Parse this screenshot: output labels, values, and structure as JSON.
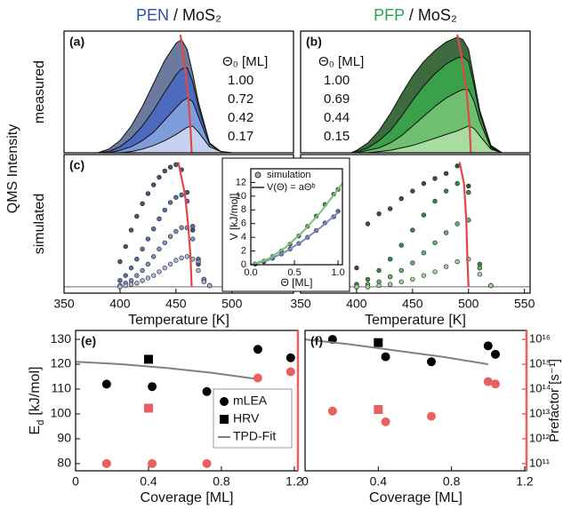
{
  "figure": {
    "ylabel": "QMS Intensity"
  },
  "chart_data": [
    {
      "type": "area",
      "title_material": "PEN",
      "title_substrate": " / MoS₂",
      "title_color": "#3050b0",
      "panel_label": "(a)",
      "ylabel": "measured",
      "legend_title": "Θ₀ [ML]",
      "xlim": [
        350,
        555
      ],
      "ylim": [
        0,
        1.0
      ],
      "x": [
        380,
        390,
        400,
        410,
        420,
        430,
        440,
        450,
        455,
        460,
        465,
        470,
        480,
        490,
        500
      ],
      "series": [
        {
          "name": "1.00",
          "color": "#6b7a9e",
          "values": [
            0,
            0.03,
            0.1,
            0.22,
            0.38,
            0.57,
            0.76,
            0.9,
            0.93,
            0.85,
            0.65,
            0.42,
            0.08,
            0.01,
            0
          ]
        },
        {
          "name": "0.72",
          "color": "#4c6bbf",
          "values": [
            0,
            0.01,
            0.05,
            0.12,
            0.22,
            0.35,
            0.5,
            0.64,
            0.69,
            0.7,
            0.58,
            0.38,
            0.08,
            0.01,
            0
          ]
        },
        {
          "name": "0.42",
          "color": "#7f9cdb",
          "values": [
            0,
            0,
            0.02,
            0.05,
            0.1,
            0.17,
            0.27,
            0.37,
            0.42,
            0.45,
            0.42,
            0.3,
            0.07,
            0.01,
            0
          ]
        },
        {
          "name": "0.17",
          "color": "#c5d1ef",
          "values": [
            0,
            0,
            0,
            0.01,
            0.03,
            0.06,
            0.1,
            0.15,
            0.18,
            0.21,
            0.22,
            0.17,
            0.05,
            0.01,
            0
          ]
        }
      ],
      "peak_trace": {
        "color": "#e04848",
        "x": [
          454,
          458,
          461,
          463,
          464
        ],
        "values": [
          0.97,
          0.7,
          0.45,
          0.2,
          0
        ]
      }
    },
    {
      "type": "area",
      "title_material": "PFP",
      "title_substrate": " / MoS₂",
      "title_color": "#30a050",
      "panel_label": "(b)",
      "legend_title": "Θ₀ [ML]",
      "xlim": [
        350,
        555
      ],
      "ylim": [
        0,
        1.0
      ],
      "x": [
        395,
        400,
        410,
        420,
        430,
        440,
        450,
        460,
        470,
        480,
        490,
        495,
        500,
        505,
        510,
        520,
        530
      ],
      "series": [
        {
          "name": "1.00",
          "color": "#3d6b3d",
          "values": [
            0,
            0.02,
            0.08,
            0.18,
            0.32,
            0.48,
            0.63,
            0.75,
            0.84,
            0.91,
            0.95,
            0.93,
            0.85,
            0.6,
            0.35,
            0.06,
            0
          ]
        },
        {
          "name": "0.69",
          "color": "#3aa04a",
          "values": [
            0,
            0.01,
            0.04,
            0.1,
            0.18,
            0.3,
            0.43,
            0.55,
            0.65,
            0.73,
            0.78,
            0.79,
            0.75,
            0.55,
            0.32,
            0.05,
            0
          ]
        },
        {
          "name": "0.44",
          "color": "#6ec070",
          "values": [
            0,
            0,
            0.02,
            0.04,
            0.08,
            0.14,
            0.22,
            0.3,
            0.38,
            0.45,
            0.5,
            0.52,
            0.52,
            0.42,
            0.26,
            0.04,
            0
          ]
        },
        {
          "name": "0.15",
          "color": "#a8dca0",
          "values": [
            0,
            0,
            0,
            0.01,
            0.02,
            0.04,
            0.06,
            0.09,
            0.12,
            0.15,
            0.18,
            0.2,
            0.22,
            0.2,
            0.14,
            0.03,
            0
          ]
        }
      ],
      "peak_trace": {
        "color": "#e04848",
        "x": [
          490,
          494,
          498,
          501,
          502
        ],
        "values": [
          0.97,
          0.78,
          0.52,
          0.22,
          0
        ]
      }
    },
    {
      "type": "scatter",
      "panel_label": "(c)",
      "ylabel": "simulated",
      "xlabel": "Temperature [K]",
      "xlim": [
        350,
        555
      ],
      "ylim": [
        -0.05,
        1.05
      ],
      "xticks": [
        350,
        400,
        450,
        500
      ],
      "x": [
        400,
        405,
        410,
        415,
        420,
        425,
        430,
        435,
        440,
        445,
        450,
        455,
        460,
        465,
        470,
        475,
        480
      ],
      "series": [
        {
          "color": "#4a5575",
          "marker": "circle",
          "values": [
            0.2,
            0.32,
            0.45,
            0.56,
            0.66,
            0.74,
            0.81,
            0.87,
            0.92,
            0.95,
            0.97,
            0.93,
            0.75,
            0.45,
            0.18,
            0.05,
            0.01
          ]
        },
        {
          "color": "#5a6ea8",
          "marker": "circle",
          "values": [
            0.05,
            0.09,
            0.15,
            0.22,
            0.3,
            0.38,
            0.46,
            0.54,
            0.61,
            0.67,
            0.71,
            0.73,
            0.68,
            0.48,
            0.22,
            0.06,
            0.01
          ]
        },
        {
          "color": "#7f93c8",
          "marker": "circle",
          "values": [
            0.01,
            0.03,
            0.05,
            0.09,
            0.13,
            0.18,
            0.24,
            0.3,
            0.35,
            0.4,
            0.44,
            0.47,
            0.47,
            0.38,
            0.2,
            0.06,
            0.01
          ]
        },
        {
          "color": "#a8b8e0",
          "marker": "circle",
          "values": [
            0,
            0.01,
            0.02,
            0.03,
            0.05,
            0.07,
            0.09,
            0.12,
            0.15,
            0.18,
            0.21,
            0.23,
            0.24,
            0.22,
            0.13,
            0.04,
            0.01
          ]
        }
      ],
      "peak_trace": {
        "color": "#e04848",
        "x": [
          452,
          458,
          461,
          463,
          464
        ],
        "values": [
          0.99,
          0.74,
          0.48,
          0.24,
          0
        ]
      }
    },
    {
      "type": "scatter",
      "panel_label": "(d)",
      "xlabel": "Temperature [K]",
      "xlim": [
        350,
        555
      ],
      "ylim": [
        -0.05,
        1.05
      ],
      "xticks": [
        350,
        400,
        450,
        500,
        550
      ],
      "x": [
        400,
        410,
        420,
        430,
        440,
        450,
        460,
        470,
        480,
        490,
        500,
        510,
        520
      ],
      "series": [
        {
          "color": "#2f5a2f",
          "marker": "circle",
          "values": [
            0.15,
            0.5,
            0.58,
            0.62,
            0.7,
            0.76,
            0.82,
            0.86,
            0.9,
            0.96,
            0.8,
            0.15,
            0.01
          ]
        },
        {
          "color": "#3c8a46",
          "marker": "circle",
          "values": [
            0.02,
            0.06,
            0.13,
            0.22,
            0.33,
            0.45,
            0.57,
            0.68,
            0.76,
            0.82,
            0.75,
            0.18,
            0.01
          ]
        },
        {
          "color": "#63b46a",
          "marker": "circle",
          "values": [
            0,
            0.02,
            0.04,
            0.08,
            0.13,
            0.19,
            0.27,
            0.35,
            0.43,
            0.5,
            0.53,
            0.15,
            0.01
          ]
        },
        {
          "color": "#9ed69a",
          "marker": "circle",
          "values": [
            0,
            0,
            0.01,
            0.02,
            0.04,
            0.06,
            0.09,
            0.12,
            0.16,
            0.2,
            0.22,
            0.1,
            0.01
          ]
        }
      ],
      "peak_trace": {
        "color": "#e04848",
        "x": [
          492,
          496,
          498,
          499,
          500
        ],
        "values": [
          0.99,
          0.82,
          0.53,
          0.22,
          0
        ]
      }
    },
    {
      "type": "scatter",
      "ylabel": "V [kJ/mol]",
      "xlabel": "Θ [ML]",
      "xlim": [
        0,
        1.05
      ],
      "ylim": [
        0,
        14
      ],
      "xticks": [
        {
          "value": 0,
          "label": "0.0"
        },
        {
          "value": 0.5,
          "label": "0.5"
        },
        {
          "value": 1,
          "label": "1.0"
        }
      ],
      "yticks": [
        0,
        2,
        4,
        6,
        8,
        10,
        12
      ],
      "series": [
        {
          "name": "simulation",
          "color": "#6a7390",
          "marker": "circle",
          "x": [
            0.05,
            0.15,
            0.25,
            0.35,
            0.45,
            0.55,
            0.65,
            0.75,
            0.85,
            0.95,
            1.0
          ],
          "values": [
            0.1,
            0.44,
            0.94,
            1.56,
            2.3,
            3.1,
            4.0,
            5.0,
            6.1,
            7.0,
            7.8
          ]
        },
        {
          "color": "#4a8a4a",
          "marker": "circle",
          "x": [
            0.05,
            0.15,
            0.25,
            0.35,
            0.45,
            0.55,
            0.65,
            0.75,
            0.85,
            0.95,
            1.0
          ],
          "values": [
            0.1,
            0.53,
            1.2,
            2.0,
            3.0,
            4.2,
            5.6,
            7.1,
            8.8,
            10.3,
            11.0
          ]
        },
        {
          "name": "V(Θ) = aΘᵇ",
          "color": "#7a8ac8",
          "line": true,
          "x": [
            0,
            0.2,
            0.4,
            0.6,
            0.8,
            1.0
          ],
          "values": [
            0,
            0.68,
            1.92,
            3.53,
            5.44,
            7.6
          ]
        },
        {
          "color": "#7ac07a",
          "line": true,
          "x": [
            0,
            0.2,
            0.4,
            0.6,
            0.8,
            1.0,
            1.05
          ],
          "values": [
            0,
            0.84,
            2.54,
            4.87,
            7.69,
            11.0,
            11.9
          ]
        }
      ]
    },
    {
      "type": "scatter",
      "panel_label": "(e)",
      "ylabel": {
        "symbol": "E",
        "subscript": "d",
        "unit": "[kJ/mol]"
      },
      "xlabel": "Coverage [ML]",
      "xlim": [
        0,
        1.22
      ],
      "ylim": [
        77.1,
        133.6
      ],
      "xticks": [
        0,
        0.4,
        0.8,
        1.2
      ],
      "yticks": [
        80,
        90,
        100,
        110,
        120,
        130
      ],
      "y2lim": [
        51000000000.0,
        2.3e+16
      ],
      "y2log": true,
      "y2color": "#e86060",
      "legend": "lower right",
      "series": [
        {
          "name": "mLEA",
          "color": "#000000",
          "marker": "circle",
          "x": [
            0.17,
            0.42,
            0.72,
            1.0,
            1.18
          ],
          "values": [
            112,
            111,
            109,
            126,
            122.6
          ]
        },
        {
          "name": "HRV",
          "color": "#000000",
          "marker": "square",
          "x": [
            0.4
          ],
          "values": [
            122
          ]
        },
        {
          "name": "TPD-Fit",
          "color": "#808080",
          "line": true,
          "x": [
            0,
            0.25,
            0.5,
            0.75,
            1.0
          ],
          "values": [
            121,
            120,
            118.5,
            116.5,
            114
          ]
        },
        {
          "color": "#e86060",
          "marker": "circle",
          "axis": "y2",
          "x": [
            0.17,
            0.42,
            0.72,
            1.0,
            1.18
          ],
          "values": [
            100000000000.0,
            100000000000.0,
            100000000000.0,
            280000000000000.0,
            500000000000000.0
          ]
        },
        {
          "color": "#e86060",
          "marker": "square",
          "axis": "y2",
          "x": [
            0.4
          ],
          "values": [
            17000000000000.0
          ]
        }
      ]
    },
    {
      "type": "scatter",
      "panel_label": "(f)",
      "xlabel": "Coverage [ML]",
      "y2label": "Prefactor [s⁻¹]",
      "xlim": [
        0,
        1.21
      ],
      "ylim": [
        77.1,
        133.6
      ],
      "xticks": [
        0,
        0.4,
        0.8,
        1.2
      ],
      "y2lim": [
        51000000000.0,
        2.3e+16
      ],
      "y2log": true,
      "y2color": "#e86060",
      "y2ticks": [
        {
          "value": 100000000000.0,
          "label": "10¹¹"
        },
        {
          "value": 1000000000000.0,
          "label": "10¹²"
        },
        {
          "value": 10000000000000.0,
          "label": "10¹³"
        },
        {
          "value": 100000000000000.0,
          "label": "10¹⁴"
        },
        {
          "value": 1000000000000000.0,
          "label": "10¹⁵"
        },
        {
          "value": 1e+16,
          "label": "10¹⁶"
        }
      ],
      "series": [
        {
          "color": "#000000",
          "marker": "circle",
          "x": [
            0.15,
            0.44,
            0.69,
            1.0,
            1.04
          ],
          "values": [
            130,
            123,
            121,
            127.4,
            124
          ]
        },
        {
          "color": "#000000",
          "marker": "square",
          "x": [
            0.4
          ],
          "values": [
            128.7
          ]
        },
        {
          "color": "#808080",
          "line": true,
          "x": [
            0,
            0.25,
            0.5,
            0.75,
            1.0
          ],
          "values": [
            130,
            128,
            125.5,
            123,
            120
          ]
        },
        {
          "color": "#e86060",
          "marker": "circle",
          "axis": "y2",
          "x": [
            0.15,
            0.44,
            0.69,
            1.0,
            1.04
          ],
          "values": [
            13000000000000.0,
            4800000000000.0,
            8000000000000.0,
            200000000000000.0,
            160000000000000.0
          ]
        },
        {
          "color": "#e86060",
          "marker": "square",
          "axis": "y2",
          "x": [
            0.4
          ],
          "values": [
            15000000000000.0
          ]
        }
      ]
    }
  ]
}
